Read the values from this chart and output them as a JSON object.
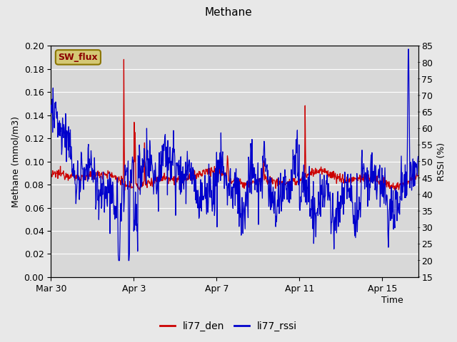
{
  "title": "Methane",
  "xlabel": "Time",
  "ylabel_left": "Methane (mmol/m3)",
  "ylabel_right": "RSSI (%)",
  "ylim_left": [
    0.0,
    0.2
  ],
  "ylim_right": [
    15,
    85
  ],
  "yticks_left": [
    0.0,
    0.02,
    0.04,
    0.06,
    0.08,
    0.1,
    0.12,
    0.14,
    0.16,
    0.18,
    0.2
  ],
  "yticks_right": [
    15,
    20,
    25,
    30,
    35,
    40,
    45,
    50,
    55,
    60,
    65,
    70,
    75,
    80,
    85
  ],
  "xtick_labels": [
    "Mar 30",
    "Apr 3",
    "Apr 7",
    "Apr 11",
    "Apr 15"
  ],
  "bg_color": "#e8e8e8",
  "plot_bg_color": "#d8d8d8",
  "grid_color": "#f0f0f0",
  "line1_color": "#cc0000",
  "line2_color": "#0000cc",
  "legend_label1": "li77_den",
  "legend_label2": "li77_rssi",
  "annotation_text": "SW_flux",
  "annotation_bg": "#d4c875",
  "annotation_border": "#8b7500",
  "figsize": [
    6.4,
    4.8
  ],
  "dpi": 100
}
